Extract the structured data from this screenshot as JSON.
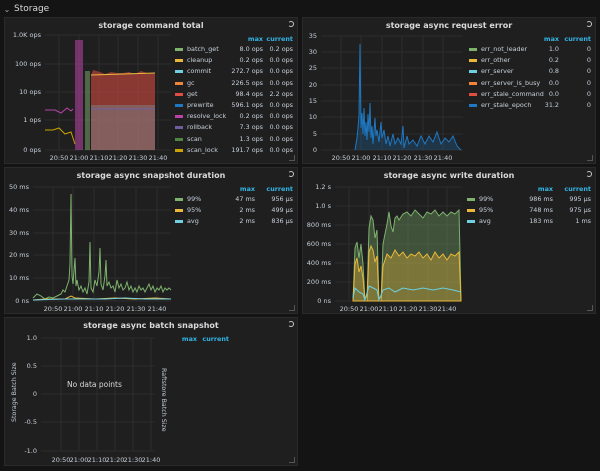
{
  "row": {
    "title": "Storage"
  },
  "panels": {
    "cmd": {
      "title": "storage command total",
      "yticks": [
        "1.0K ops",
        "100 ops",
        "10 ops",
        "1 ops",
        "0 ops"
      ],
      "xticks": [
        "20:50",
        "21:00",
        "21:10",
        "21:20",
        "21:30",
        "21:40"
      ],
      "legend_headers": {
        "max": "max",
        "current": "current"
      },
      "legend": [
        {
          "name": "batch_get",
          "max": "8.0 ops",
          "current": "0.2 ops",
          "color": "#7eb26d"
        },
        {
          "name": "cleanup",
          "max": "0.2 ops",
          "current": "0.0 ops",
          "color": "#eab839"
        },
        {
          "name": "commit",
          "max": "272.7 ops",
          "current": "0.0 ops",
          "color": "#6ed0e0"
        },
        {
          "name": "gc",
          "max": "226.5 ops",
          "current": "0.0 ops",
          "color": "#ef843c"
        },
        {
          "name": "get",
          "max": "98.4 ops",
          "current": "2.2 ops",
          "color": "#e24d42"
        },
        {
          "name": "prewrite",
          "max": "596.1 ops",
          "current": "0.0 ops",
          "color": "#1f78c1"
        },
        {
          "name": "resolve_lock",
          "max": "0.2 ops",
          "current": "0.0 ops",
          "color": "#ba43a9"
        },
        {
          "name": "rollback",
          "max": "7.3 ops",
          "current": "0.0 ops",
          "color": "#705da0"
        },
        {
          "name": "scan",
          "max": "1.3 ops",
          "current": "0.0 ops",
          "color": "#508642"
        },
        {
          "name": "scan_lock",
          "max": "191.7 ops",
          "current": "0.0 ops",
          "color": "#cca300"
        }
      ]
    },
    "asyncerr": {
      "title": "storage async request error",
      "yticks": [
        "35",
        "30",
        "25",
        "20",
        "15",
        "10",
        "5",
        "0"
      ],
      "xticks": [
        "20:50",
        "21:00",
        "21:10",
        "21:20",
        "21:30",
        "21:40"
      ],
      "legend_headers": {
        "max": "max",
        "current": "current"
      },
      "legend": [
        {
          "name": "err_not_leader",
          "max": "1.0",
          "current": "0",
          "color": "#7eb26d"
        },
        {
          "name": "err_other",
          "max": "0.2",
          "current": "0",
          "color": "#eab839"
        },
        {
          "name": "err_server",
          "max": "0.8",
          "current": "0",
          "color": "#6ed0e0"
        },
        {
          "name": "err_server_is_busy",
          "max": "0.0",
          "current": "0",
          "color": "#ef843c"
        },
        {
          "name": "err_stale_command",
          "max": "0.0",
          "current": "0",
          "color": "#e24d42"
        },
        {
          "name": "err_stale_epoch",
          "max": "31.2",
          "current": "0",
          "color": "#1f78c1"
        }
      ]
    },
    "snap": {
      "title": "storage async snapshot duration",
      "yticks": [
        "50 ms",
        "40 ms",
        "30 ms",
        "20 ms",
        "10 ms",
        "0 ns"
      ],
      "xticks": [
        "20:50",
        "21:00",
        "21:10",
        "21:20",
        "21:30",
        "21:40"
      ],
      "legend_headers": {
        "max": "max",
        "current": "current"
      },
      "legend": [
        {
          "name": "99%",
          "max": "47 ms",
          "current": "956 µs",
          "color": "#7eb26d"
        },
        {
          "name": "95%",
          "max": "2 ms",
          "current": "499 µs",
          "color": "#eab839"
        },
        {
          "name": "avg",
          "max": "2 ms",
          "current": "836 µs",
          "color": "#6ed0e0"
        }
      ]
    },
    "write": {
      "title": "storage async write duration",
      "yticks": [
        "1.2 s",
        "1.0 s",
        "800 ms",
        "600 ms",
        "400 ms",
        "200 ms",
        "0 ns"
      ],
      "xticks": [
        "20:50",
        "21:00",
        "21:10",
        "21:20",
        "21:30",
        "21:40"
      ],
      "legend_headers": {
        "max": "max",
        "current": "current"
      },
      "legend": [
        {
          "name": "99%",
          "max": "986 ms",
          "current": "995 µs",
          "color": "#7eb26d"
        },
        {
          "name": "95%",
          "max": "748 ms",
          "current": "975 µs",
          "color": "#eab839"
        },
        {
          "name": "avg",
          "max": "183 ms",
          "current": "1 ms",
          "color": "#6ed0e0"
        }
      ]
    },
    "batch": {
      "title": "storage async batch snapshot",
      "yticks": [
        "1.0",
        "0.5",
        "0",
        "-0.5",
        "-1.0"
      ],
      "xticks": [
        "20:50",
        "21:00",
        "21:10",
        "21:20",
        "21:30",
        "21:40"
      ],
      "legend_headers": {
        "max": "max",
        "current": "current"
      },
      "ylabel_left": "Storage Batch Size",
      "ylabel_right": "Raftstore Batch Size",
      "nodata": "No data points"
    }
  }
}
